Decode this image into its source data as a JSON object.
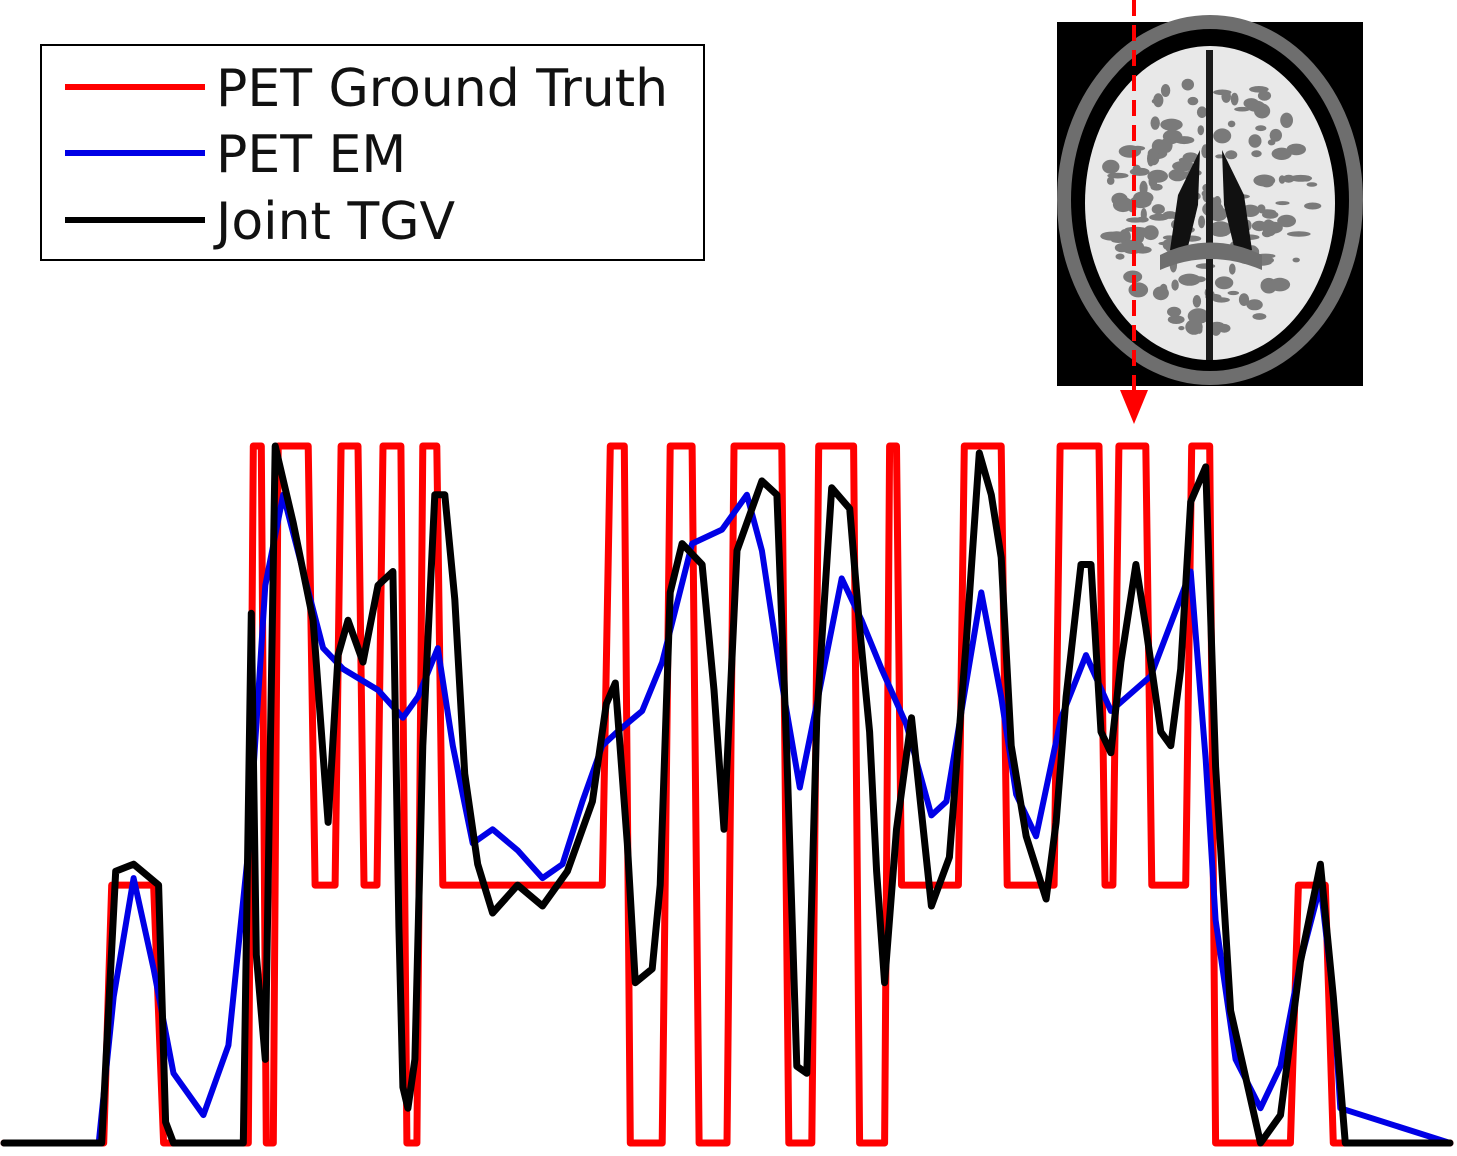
{
  "chart_data": {
    "type": "line",
    "title": "",
    "xlabel": "",
    "ylabel": "",
    "axes_visible": false,
    "grid": false,
    "legend_position": "top-left",
    "xlim": [
      0,
      1450
    ],
    "ylim": [
      0,
      1.0
    ],
    "series": [
      {
        "name": "PET Ground Truth",
        "color": "#ff0000",
        "x": [
          0,
          100,
          108,
          150,
          160,
          245,
          250,
          258,
          263,
          270,
          275,
          305,
          312,
          332,
          338,
          355,
          361,
          374,
          380,
          398,
          404,
          414,
          420,
          434,
          440,
          600,
          608,
          622,
          628,
          660,
          668,
          690,
          697,
          725,
          732,
          780,
          787,
          810,
          817,
          852,
          858,
          883,
          888,
          895,
          900,
          957,
          963,
          1000,
          1006,
          1053,
          1059,
          1098,
          1104,
          1112,
          1118,
          1145,
          1151,
          1185,
          1191,
          1209,
          1215,
          1290,
          1298,
          1325,
          1333,
          1450
        ],
        "y": [
          0,
          0,
          0.37,
          0.37,
          0,
          0,
          1.0,
          1.0,
          0,
          0,
          1.0,
          1.0,
          0.37,
          0.37,
          1.0,
          1.0,
          0.37,
          0.37,
          1.0,
          1.0,
          0,
          0,
          1.0,
          1.0,
          0.37,
          0.37,
          1.0,
          1.0,
          0,
          0,
          1.0,
          1.0,
          0,
          0,
          1.0,
          1.0,
          0,
          0,
          1.0,
          1.0,
          0,
          0,
          1.0,
          1.0,
          0.37,
          0.37,
          1.0,
          1.0,
          0.37,
          0.37,
          1.0,
          1.0,
          0.37,
          0.37,
          1.0,
          1.0,
          0.37,
          0.37,
          1.0,
          1.0,
          0,
          0,
          0.37,
          0.37,
          0,
          0
        ]
      },
      {
        "name": "PET EM",
        "color": "#0000e6",
        "x": [
          0,
          95,
          110,
          130,
          150,
          170,
          200,
          225,
          245,
          262,
          280,
          300,
          320,
          340,
          375,
          400,
          415,
          435,
          450,
          470,
          490,
          515,
          540,
          560,
          580,
          600,
          615,
          640,
          660,
          690,
          720,
          745,
          760,
          780,
          798,
          815,
          840,
          860,
          880,
          905,
          930,
          945,
          980,
          1000,
          1015,
          1035,
          1060,
          1085,
          1110,
          1150,
          1190,
          1205,
          1215,
          1235,
          1260,
          1280,
          1300,
          1320,
          1333,
          1340,
          1450
        ],
        "y": [
          0,
          0,
          0.21,
          0.38,
          0.25,
          0.1,
          0.04,
          0.14,
          0.42,
          0.8,
          0.93,
          0.82,
          0.71,
          0.68,
          0.65,
          0.61,
          0.64,
          0.71,
          0.57,
          0.43,
          0.45,
          0.42,
          0.38,
          0.4,
          0.49,
          0.57,
          0.59,
          0.62,
          0.69,
          0.86,
          0.88,
          0.93,
          0.85,
          0.66,
          0.51,
          0.63,
          0.81,
          0.75,
          0.68,
          0.6,
          0.47,
          0.49,
          0.79,
          0.64,
          0.5,
          0.44,
          0.61,
          0.7,
          0.62,
          0.67,
          0.82,
          0.55,
          0.32,
          0.12,
          0.05,
          0.11,
          0.26,
          0.37,
          0.21,
          0.05,
          0
        ]
      },
      {
        "name": "Joint TGV",
        "color": "#000000",
        "x": [
          0,
          98,
          112,
          130,
          155,
          162,
          170,
          240,
          248,
          253,
          262,
          272,
          290,
          310,
          325,
          335,
          345,
          360,
          375,
          390,
          396,
          400,
          405,
          412,
          420,
          432,
          442,
          452,
          462,
          475,
          490,
          515,
          540,
          565,
          590,
          604,
          613,
          625,
          633,
          650,
          658,
          668,
          680,
          700,
          712,
          722,
          735,
          760,
          775,
          785,
          795,
          805,
          815,
          830,
          848,
          858,
          868,
          875,
          883,
          895,
          910,
          930,
          948,
          965,
          978,
          990,
          1000,
          1010,
          1025,
          1045,
          1055,
          1065,
          1080,
          1090,
          1100,
          1110,
          1120,
          1135,
          1145,
          1160,
          1170,
          1180,
          1190,
          1205,
          1215,
          1230,
          1260,
          1280,
          1300,
          1320,
          1333,
          1345,
          1450
        ],
        "y": [
          0,
          0,
          0.39,
          0.4,
          0.37,
          0.03,
          0,
          0,
          0.76,
          0.27,
          0.12,
          1.0,
          0.89,
          0.75,
          0.46,
          0.7,
          0.75,
          0.69,
          0.8,
          0.82,
          0.31,
          0.08,
          0.05,
          0.12,
          0.57,
          0.93,
          0.93,
          0.78,
          0.53,
          0.4,
          0.33,
          0.37,
          0.34,
          0.39,
          0.49,
          0.63,
          0.66,
          0.43,
          0.23,
          0.25,
          0.37,
          0.79,
          0.86,
          0.83,
          0.65,
          0.45,
          0.85,
          0.95,
          0.93,
          0.56,
          0.11,
          0.1,
          0.61,
          0.94,
          0.91,
          0.74,
          0.59,
          0.39,
          0.23,
          0.45,
          0.61,
          0.34,
          0.41,
          0.72,
          0.99,
          0.93,
          0.84,
          0.57,
          0.44,
          0.35,
          0.46,
          0.64,
          0.83,
          0.83,
          0.59,
          0.56,
          0.69,
          0.83,
          0.74,
          0.59,
          0.57,
          0.68,
          0.92,
          0.97,
          0.54,
          0.19,
          0,
          0.04,
          0.26,
          0.4,
          0.21,
          0,
          0
        ]
      }
    ]
  },
  "inset": {
    "image_description": "axial brain slice",
    "marker_color": "#ff0000"
  }
}
